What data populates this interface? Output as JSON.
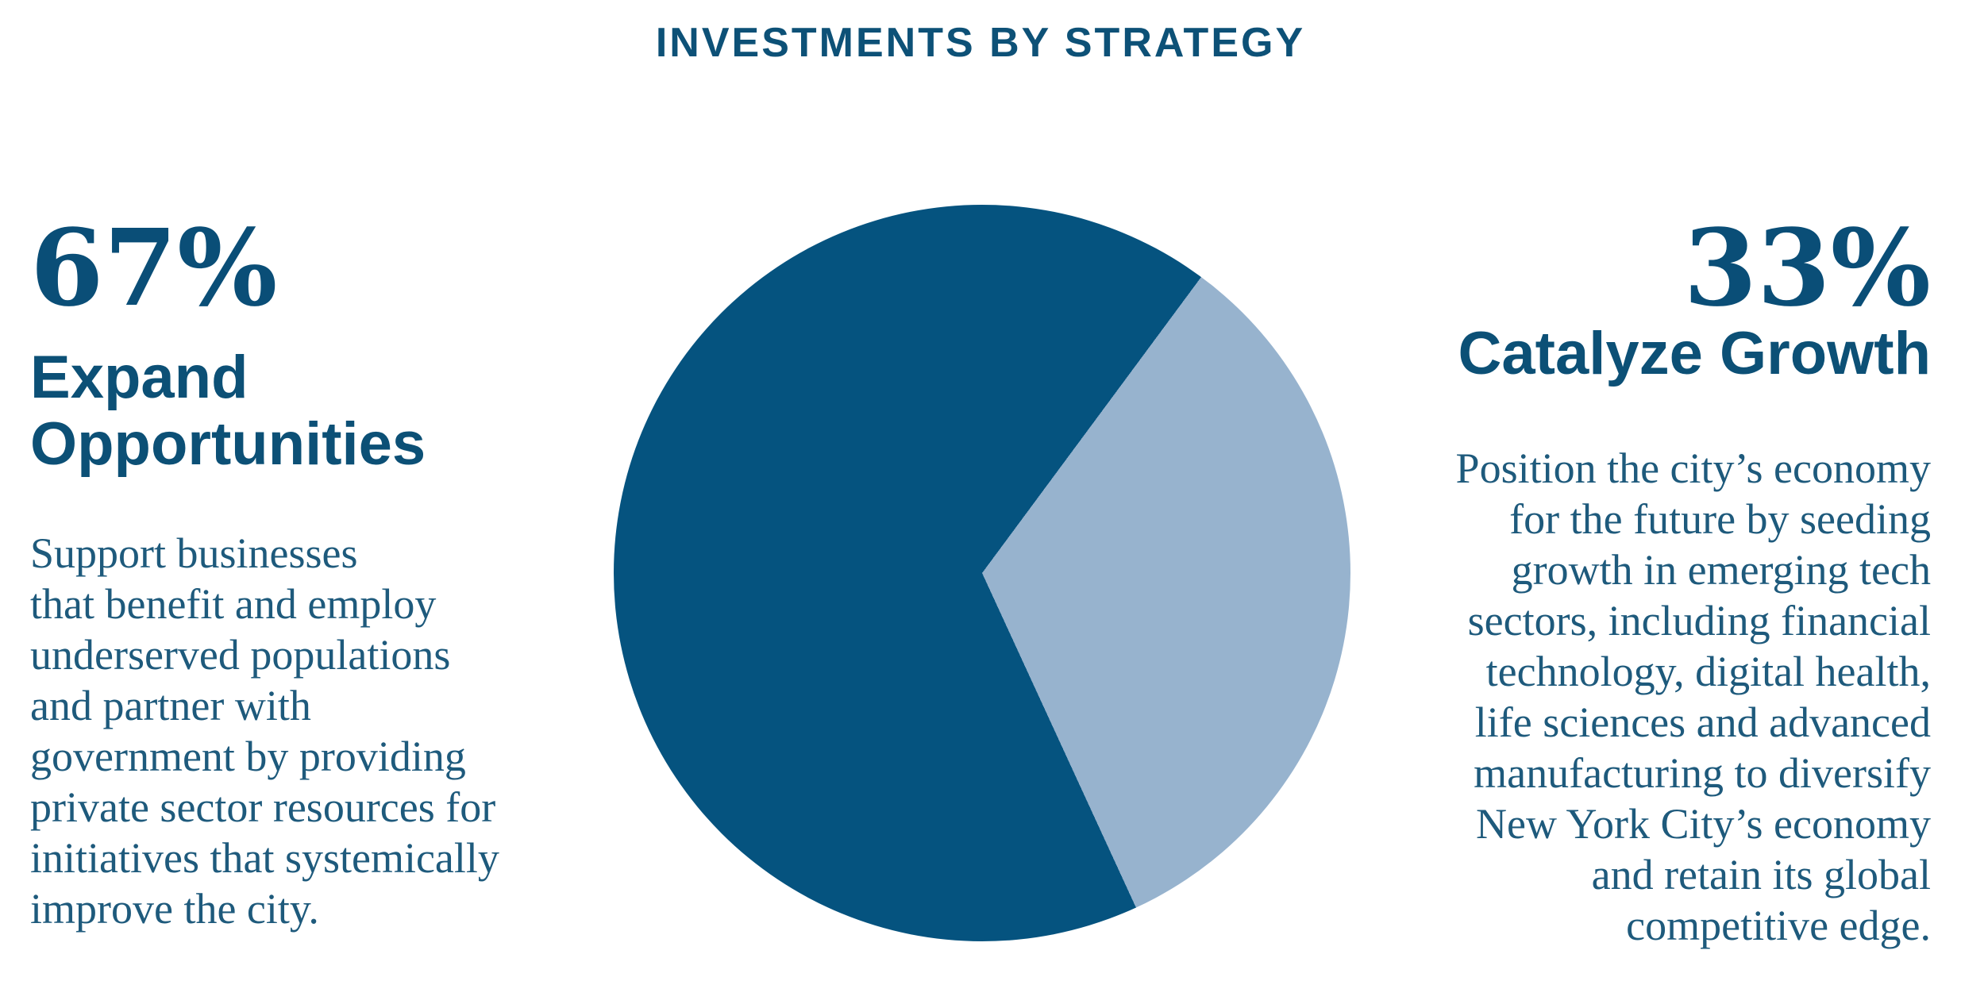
{
  "title": "INVESTMENTS BY STRATEGY",
  "colors": {
    "dark_blue": "#05537F",
    "light_blue": "#97B3CE",
    "heading_text": "#0C5076",
    "body_text": "#1E5A7C"
  },
  "left": {
    "percent": "67%",
    "heading": "Expand\nOpportunities",
    "description": "Support businesses\nthat benefit and employ\nunderserved populations\nand partner with\ngovernment by providing\nprivate sector resources for\ninitiatives that systemically\nimprove the city."
  },
  "right": {
    "percent": "33%",
    "heading": "Catalyze Growth",
    "description": "Position the city’s economy\nfor the future by seeding\ngrowth in emerging tech\nsectors, including financial\ntechnology, digital health,\nlife sciences and advanced\nmanufacturing to diversify\nNew York City’s economy\nand retain its global\ncompetitive edge."
  },
  "chart_data": {
    "type": "pie",
    "title": "INVESTMENTS BY STRATEGY",
    "categories": [
      "Expand Opportunities",
      "Catalyze Growth"
    ],
    "values": [
      67,
      33
    ],
    "colors": [
      "#05537F",
      "#97B3CE"
    ],
    "legend_position": "none",
    "rotation_deg_clockwise_from_top": 155.3,
    "notes": "Dark 67% slice occupies left/top/bottom; light 33% slice points right; slice apex at circle center."
  }
}
